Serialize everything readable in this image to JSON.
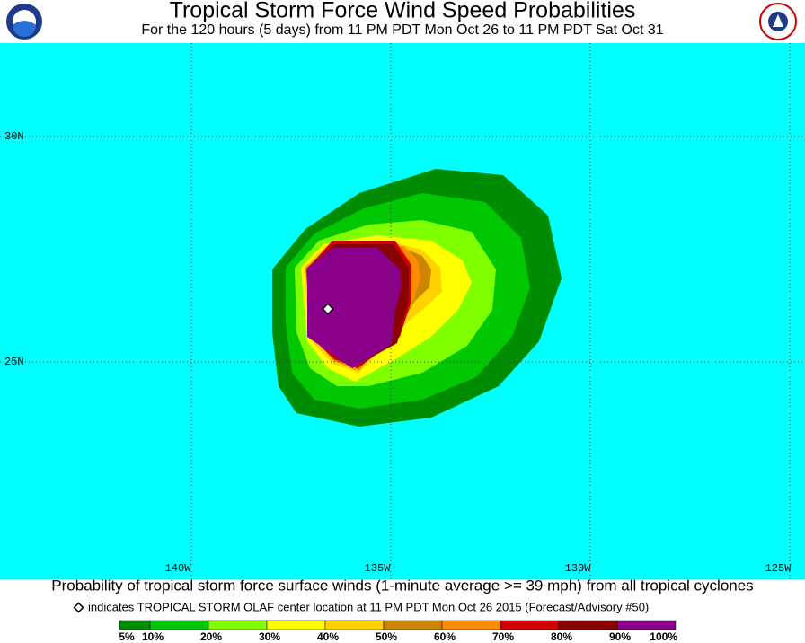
{
  "header": {
    "title": "Tropical Storm Force Wind Speed Probabilities",
    "subtitle": "For the 120 hours (5 days) from 11 PM PDT Mon Oct 26 to 11 PM PDT Sat Oct 31"
  },
  "map": {
    "lat_labels": [
      "30N",
      "25N"
    ],
    "lon_labels": [
      "140W",
      "135W",
      "130W",
      "125W"
    ]
  },
  "footer": {
    "caption": "Probability of tropical storm force surface winds (1-minute average >= 39 mph) from all tropical cyclones",
    "note": "indicates TROPICAL STORM OLAF center location at 11 PM PDT Mon Oct 26 2015 (Forecast/Advisory #50)"
  },
  "legend": {
    "labels": [
      "5%",
      "10%",
      "20%",
      "30%",
      "40%",
      "50%",
      "60%",
      "70%",
      "80%",
      "90%",
      "100%"
    ],
    "colors": [
      "#008c00",
      "#00c800",
      "#80ff00",
      "#ffff00",
      "#ffd200",
      "#cd8500",
      "#ff8c00",
      "#d20000",
      "#8b0000",
      "#8b008b"
    ]
  }
}
